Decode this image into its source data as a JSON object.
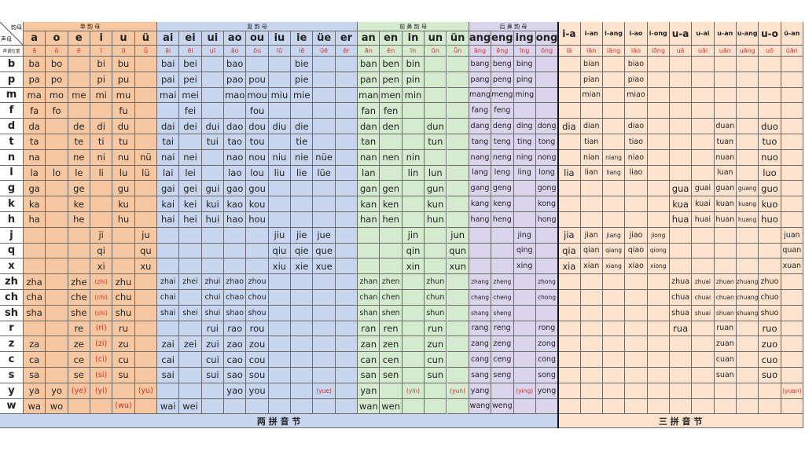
{
  "corner": {
    "top": "韵母",
    "left": "声母",
    "tone_label": "声调位置"
  },
  "groups": [
    {
      "title": "单 韵 母",
      "color": "#f6c7a0",
      "finals": [
        "a",
        "o",
        "e",
        "i",
        "u",
        "ü"
      ],
      "tones": [
        "ā",
        "ō",
        "ē",
        "ī",
        "ū",
        "ǖ"
      ]
    },
    {
      "title": "复 韵 母",
      "color": "#c7d5ef",
      "finals": [
        "ai",
        "ei",
        "ui",
        "ao",
        "ou",
        "iu",
        "ie",
        "üe",
        "er"
      ],
      "tones": [
        "āi",
        "ēi",
        "uī",
        "āo",
        "ōu",
        "iū",
        "iē",
        "üē",
        "ēr"
      ]
    },
    {
      "title": "前 鼻 韵 母",
      "color": "#d5ebd0",
      "finals": [
        "an",
        "en",
        "in",
        "un",
        "ün"
      ],
      "tones": [
        "ān",
        "ēn",
        "īn",
        "ūn",
        "ǖn"
      ]
    },
    {
      "title": "后 鼻 韵 母",
      "color": "#dbd4ed",
      "finals": [
        "ang",
        "eng",
        "ing",
        "ong"
      ],
      "tones": [
        "āng",
        "ēng",
        "īng",
        "ōng"
      ]
    },
    {
      "color": "#fde3ce",
      "finals": [
        "i-a",
        "i-an",
        "i-ang",
        "i-ao",
        "i-ong",
        "u-a",
        "u-ai",
        "u-an",
        "u-ang",
        "u-o",
        "ü-an"
      ],
      "tones": [
        "iā",
        "iān",
        "iāng",
        "iāo",
        "iōng",
        "uā",
        "uāi",
        "uān",
        "uāng",
        "uō",
        "üān"
      ]
    }
  ],
  "rows": [
    {
      "initial": "b",
      "cells": [
        "ba",
        "bo",
        null,
        "bi",
        "bu",
        null,
        "bai",
        "bei",
        null,
        "bao",
        null,
        null,
        "bie",
        null,
        null,
        "ban",
        "ben",
        "bin",
        null,
        null,
        "bang",
        "beng",
        "bing",
        null,
        null,
        "bian",
        null,
        "biao",
        null,
        null,
        null,
        null,
        null,
        null,
        null
      ]
    },
    {
      "initial": "p",
      "cells": [
        "pa",
        "po",
        null,
        "pi",
        "pu",
        null,
        "pai",
        "pei",
        null,
        "pao",
        "pou",
        null,
        "pie",
        null,
        null,
        "pan",
        "pen",
        "pin",
        null,
        null,
        "pang",
        "peng",
        "ping",
        null,
        null,
        "pian",
        null,
        "piao",
        null,
        null,
        null,
        null,
        null,
        null,
        null
      ]
    },
    {
      "initial": "m",
      "cells": [
        "ma",
        "mo",
        "me",
        "mi",
        "mu",
        null,
        "mai",
        "mei",
        null,
        "mao",
        "mou",
        "miu",
        "mie",
        null,
        null,
        "man",
        "men",
        "min",
        null,
        null,
        "mang",
        "meng",
        "ming",
        null,
        null,
        "mian",
        null,
        "miao",
        null,
        null,
        null,
        null,
        null,
        null,
        null
      ]
    },
    {
      "initial": "f",
      "cells": [
        "fa",
        "fo",
        null,
        null,
        "fu",
        null,
        null,
        "fei",
        null,
        null,
        "fou",
        null,
        null,
        null,
        null,
        "fan",
        "fen",
        null,
        null,
        null,
        "fang",
        "feng",
        null,
        null,
        null,
        null,
        null,
        null,
        null,
        null,
        null,
        null,
        null,
        null,
        null
      ]
    },
    {
      "initial": "d",
      "cells": [
        "da",
        null,
        "de",
        "di",
        "du",
        null,
        "dai",
        "dei",
        "dui",
        "dao",
        "dou",
        "diu",
        "die",
        null,
        null,
        "dan",
        "den",
        null,
        "dun",
        null,
        "dang",
        "deng",
        "ding",
        "dong",
        "dia",
        "dian",
        null,
        "diao",
        null,
        null,
        null,
        "duan",
        null,
        "duo",
        null
      ]
    },
    {
      "initial": "t",
      "cells": [
        "ta",
        null,
        "te",
        "ti",
        "tu",
        null,
        "tai",
        null,
        "tui",
        "tao",
        "tou",
        null,
        "tie",
        null,
        null,
        "tan",
        null,
        null,
        "tun",
        null,
        "tang",
        "teng",
        "ting",
        "tong",
        null,
        "tian",
        null,
        "tiao",
        null,
        null,
        null,
        "tuan",
        null,
        "tuo",
        null
      ]
    },
    {
      "initial": "n",
      "cells": [
        "na",
        null,
        "ne",
        "ni",
        "nu",
        "nü",
        "nai",
        "nei",
        null,
        "nao",
        "nou",
        "niu",
        "nie",
        "nüe",
        null,
        "nan",
        "nen",
        "nin",
        null,
        null,
        "nang",
        "neng",
        "ning",
        "nong",
        null,
        "nian",
        "niang",
        "niao",
        null,
        null,
        null,
        "nuan",
        null,
        "nuo",
        null
      ]
    },
    {
      "initial": "l",
      "cells": [
        "la",
        "lo",
        "le",
        "li",
        "lu",
        "lü",
        "lai",
        "lei",
        null,
        "lao",
        "lou",
        "liu",
        "lie",
        "lüe",
        null,
        "lan",
        null,
        "lin",
        "lun",
        null,
        "lang",
        "leng",
        "ling",
        "long",
        "lia",
        "lian",
        "liang",
        "liao",
        null,
        null,
        null,
        "luan",
        null,
        "luo",
        null
      ]
    },
    {
      "initial": "g",
      "cells": [
        "ga",
        null,
        "ge",
        null,
        "gu",
        null,
        "gai",
        "gei",
        "gui",
        "gao",
        "gou",
        null,
        null,
        null,
        null,
        "gan",
        "gen",
        null,
        "gun",
        null,
        "gang",
        "geng",
        null,
        "gong",
        null,
        null,
        null,
        null,
        null,
        "gua",
        "guai",
        "guan",
        "guang",
        "guo",
        null
      ]
    },
    {
      "initial": "k",
      "cells": [
        "ka",
        null,
        "ke",
        null,
        "ku",
        null,
        "kai",
        "kei",
        "kui",
        "kao",
        "kou",
        null,
        null,
        null,
        null,
        "kan",
        "ken",
        null,
        "kun",
        null,
        "kang",
        "keng",
        null,
        "kong",
        null,
        null,
        null,
        null,
        null,
        "kua",
        "kuai",
        "kuan",
        "kuang",
        "kuo",
        null
      ]
    },
    {
      "initial": "h",
      "cells": [
        "ha",
        null,
        "he",
        null,
        "hu",
        null,
        "hai",
        "hei",
        "hui",
        "hao",
        "hou",
        null,
        null,
        null,
        null,
        "han",
        "hen",
        null,
        "hun",
        null,
        "hang",
        "heng",
        null,
        "hong",
        null,
        null,
        null,
        null,
        null,
        "hua",
        "huai",
        "huan",
        "huang",
        "huo",
        null
      ]
    },
    {
      "initial": "j",
      "cells": [
        null,
        null,
        null,
        "ji",
        null,
        "ju",
        null,
        null,
        null,
        null,
        null,
        "jiu",
        "jie",
        "jue",
        null,
        null,
        null,
        "jin",
        null,
        "jun",
        null,
        null,
        "jing",
        null,
        "jia",
        "jian",
        "jiang",
        "jiao",
        "jiong",
        null,
        null,
        null,
        null,
        null,
        "juan"
      ]
    },
    {
      "initial": "q",
      "cells": [
        null,
        null,
        null,
        "qi",
        null,
        "qu",
        null,
        null,
        null,
        null,
        null,
        "qiu",
        "qie",
        "que",
        null,
        null,
        null,
        "qin",
        null,
        "qun",
        null,
        null,
        "qing",
        null,
        "qia",
        "qian",
        "qiang",
        "qiao",
        "qiong",
        null,
        null,
        null,
        null,
        null,
        "quan"
      ]
    },
    {
      "initial": "x",
      "cells": [
        null,
        null,
        null,
        "xi",
        null,
        "xu",
        null,
        null,
        null,
        null,
        null,
        "xiu",
        "xie",
        "xue",
        null,
        null,
        null,
        "xin",
        null,
        "xun",
        null,
        null,
        "xing",
        null,
        "xia",
        "xian",
        "xiang",
        "xiao",
        "xiong",
        null,
        null,
        null,
        null,
        null,
        "xuan"
      ]
    },
    {
      "initial": "zh",
      "cells": [
        "zha",
        null,
        "zhe",
        "(zhi)",
        "zhu",
        null,
        "zhai",
        "zhei",
        "zhui",
        "zhao",
        "zhou",
        null,
        null,
        null,
        null,
        "zhan",
        "zhen",
        null,
        "zhun",
        null,
        "zhang",
        "zheng",
        null,
        "zhong",
        null,
        null,
        null,
        null,
        null,
        "zhua",
        "zhuai",
        "zhuan",
        "zhuang",
        "zhuo",
        null
      ]
    },
    {
      "initial": "ch",
      "cells": [
        "cha",
        null,
        "che",
        "(chi)",
        "chu",
        null,
        "chai",
        null,
        "chui",
        "chao",
        "chou",
        null,
        null,
        null,
        null,
        "chan",
        "chen",
        null,
        "chun",
        null,
        "chang",
        "cheng",
        null,
        "chong",
        null,
        null,
        null,
        null,
        null,
        "chua",
        "chuai",
        "chuan",
        "chuang",
        "chuo",
        null
      ]
    },
    {
      "initial": "sh",
      "cells": [
        "sha",
        null,
        "she",
        "(shi)",
        "shu",
        null,
        "shai",
        "shei",
        "shui",
        "shao",
        "shou",
        null,
        null,
        null,
        null,
        "shan",
        "shen",
        null,
        "shun",
        null,
        "shang",
        "sheng",
        null,
        null,
        null,
        null,
        null,
        null,
        null,
        "shua",
        "shuai",
        "shuan",
        "shuang",
        "shuo",
        null
      ]
    },
    {
      "initial": "r",
      "cells": [
        null,
        null,
        "re",
        "(ri)",
        "ru",
        null,
        null,
        null,
        "rui",
        "rao",
        "rou",
        null,
        null,
        null,
        null,
        "ran",
        "ren",
        null,
        "run",
        null,
        "rang",
        "reng",
        null,
        "rong",
        null,
        null,
        null,
        null,
        null,
        "rua",
        null,
        "ruan",
        null,
        "ruo",
        null
      ]
    },
    {
      "initial": "z",
      "cells": [
        "za",
        null,
        "ze",
        "(zi)",
        "zu",
        null,
        "zai",
        "zei",
        "zui",
        "zao",
        "zou",
        null,
        null,
        null,
        null,
        "zan",
        "zen",
        null,
        "zun",
        null,
        "zang",
        "zeng",
        null,
        "zong",
        null,
        null,
        null,
        null,
        null,
        null,
        null,
        "zuan",
        null,
        "zuo",
        null
      ]
    },
    {
      "initial": "c",
      "cells": [
        "ca",
        null,
        "ce",
        "(ci)",
        "cu",
        null,
        "cai",
        null,
        "cui",
        "cao",
        "cou",
        null,
        null,
        null,
        null,
        "can",
        "cen",
        null,
        "cun",
        null,
        "cang",
        "ceng",
        null,
        "cong",
        null,
        null,
        null,
        null,
        null,
        null,
        null,
        "cuan",
        null,
        "cuo",
        null
      ]
    },
    {
      "initial": "s",
      "cells": [
        "sa",
        null,
        "se",
        "(si)",
        "su",
        null,
        "sai",
        null,
        "sui",
        "sao",
        "sou",
        null,
        null,
        null,
        null,
        "san",
        "sen",
        null,
        "sun",
        null,
        "sang",
        "seng",
        null,
        "song",
        null,
        null,
        null,
        null,
        null,
        null,
        null,
        "suan",
        null,
        "suo",
        null
      ]
    },
    {
      "initial": "y",
      "cells": [
        "ya",
        "yo",
        "(ye)",
        "(yi)",
        null,
        "(yu)",
        null,
        null,
        null,
        "yao",
        "you",
        null,
        null,
        "(yue)",
        null,
        "yan",
        null,
        "(yin)",
        null,
        "(yun)",
        "yang",
        null,
        "(ying)",
        "yong",
        null,
        null,
        null,
        null,
        null,
        null,
        null,
        null,
        null,
        null,
        "(yuan)"
      ]
    },
    {
      "initial": "w",
      "cells": [
        "wa",
        "wo",
        null,
        null,
        "(wu)",
        null,
        "wai",
        "wei",
        null,
        null,
        null,
        null,
        null,
        null,
        null,
        "wan",
        "wen",
        null,
        null,
        null,
        "wang",
        "weng",
        null,
        null,
        null,
        null,
        null,
        null,
        null,
        null,
        null,
        null,
        null,
        null,
        null
      ]
    }
  ],
  "footer": [
    "两 拼 音 节",
    "三 拼 音 节"
  ]
}
